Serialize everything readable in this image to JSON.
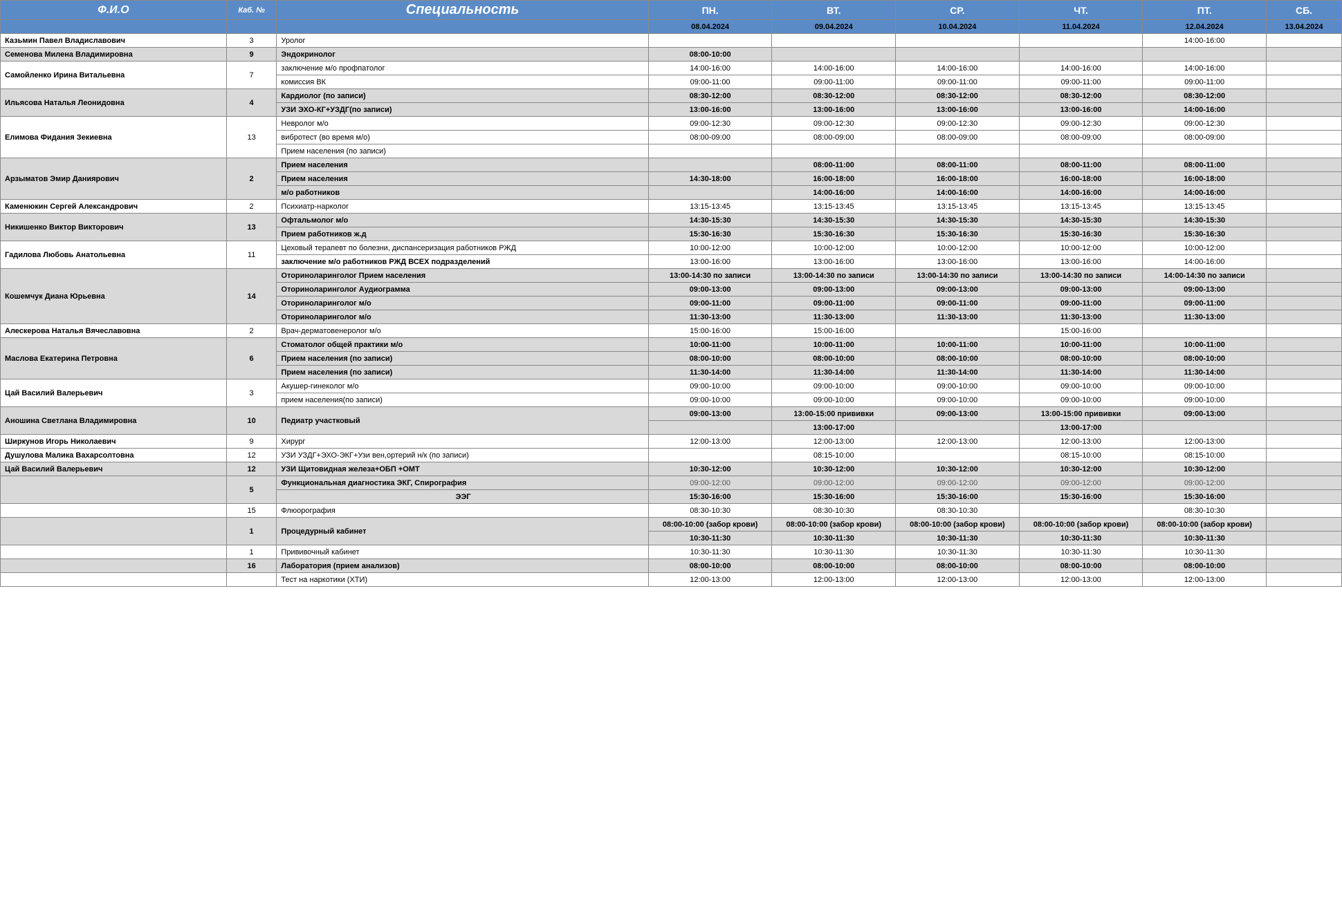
{
  "hdr": {
    "fio": "Ф.И.О",
    "kab": "Каб. №",
    "spec": "Специальность",
    "d1": "ПН.",
    "d2": "ВТ.",
    "d3": "СР.",
    "d4": "ЧТ.",
    "d5": "ПТ.",
    "d6": "СБ."
  },
  "dates": {
    "d1": "08.04.2024",
    "d2": "09.04.2024",
    "d3": "10.04.2024",
    "d4": "11.04.2024",
    "d5": "12.04.2024",
    "d6": "13.04.2024"
  },
  "col_widths": {
    "fio": 225,
    "kab": 50,
    "spec": 370,
    "day": 123,
    "sat": 75
  },
  "colors": {
    "header_bg": "#5B8BC7",
    "shade_bg": "#d9d9d9",
    "border": "#888"
  },
  "rows": [
    {
      "fio": "Казьмин Павел Владиславович",
      "kab": "3",
      "spec": "Уролог",
      "t": [
        "",
        "",
        "",
        "",
        "14:00-16:00",
        ""
      ],
      "shade": false,
      "fiospan": 1,
      "kabspan": 1
    },
    {
      "fio": "Семенова Милена Владимировна",
      "kab": "9",
      "spec": "Эндокринолог",
      "t": [
        "08:00-10:00",
        "",
        "",
        "",
        "",
        ""
      ],
      "shade": true,
      "fiospan": 1,
      "kabspan": 1
    },
    {
      "fio": "Самойленко Ирина Витальевна",
      "kab": "7",
      "spec": "заключение м/о профпатолог",
      "t": [
        "14:00-16:00",
        "14:00-16:00",
        "14:00-16:00",
        "14:00-16:00",
        "14:00-16:00",
        ""
      ],
      "shade": false,
      "fiospan": 2,
      "kabspan": 2
    },
    {
      "spec": "комиссия ВК",
      "t": [
        "09:00-11:00",
        "09:00-11:00",
        "09:00-11:00",
        "09:00-11:00",
        "09:00-11:00",
        ""
      ],
      "shade": false
    },
    {
      "fio": "Ильясова Наталья Леонидовна",
      "kab": "4",
      "spec": "Кардиолог (по записи)",
      "t": [
        "08:30-12:00",
        "08:30-12:00",
        "08:30-12:00",
        "08:30-12:00",
        "08:30-12:00",
        ""
      ],
      "shade": true,
      "fiospan": 2,
      "kabspan": 2
    },
    {
      "spec": "УЗИ  ЭХО-КГ+УЗДГ(по записи)",
      "t": [
        "13:00-16:00",
        "13:00-16:00",
        "13:00-16:00",
        "13:00-16:00",
        "14:00-16:00",
        ""
      ],
      "shade": true
    },
    {
      "fio": "Елимова Фидания Зекиевна",
      "kab": "13",
      "spec": "Невролог       м/о",
      "t": [
        "09:00-12:30",
        "09:00-12:30",
        "09:00-12:30",
        "09:00-12:30",
        "09:00-12:30",
        ""
      ],
      "shade": false,
      "fiospan": 3,
      "kabspan": 3
    },
    {
      "spec": "вибротест (во время м/о)",
      "t": [
        "08:00-09:00",
        "08:00-09:00",
        "08:00-09:00",
        "08:00-09:00",
        "08:00-09:00",
        ""
      ],
      "shade": false
    },
    {
      "spec": "Прием населения (по записи)",
      "t": [
        "",
        "",
        "",
        "",
        "",
        ""
      ],
      "shade": false
    },
    {
      "fio": "Арзыматов Эмир Даниярович",
      "kab": "2",
      "spec": "Прием населения",
      "t": [
        "",
        "08:00-11:00",
        "08:00-11:00",
        "08:00-11:00",
        "08:00-11:00",
        ""
      ],
      "shade": true,
      "fiospan": 3,
      "kabspan": 3
    },
    {
      "spec": "Прием населения",
      "t": [
        "14:30-18:00",
        "16:00-18:00",
        "16:00-18:00",
        "16:00-18:00",
        "16:00-18:00",
        ""
      ],
      "shade": true
    },
    {
      "spec": "м/о работников",
      "t": [
        "",
        "14:00-16:00",
        "14:00-16:00",
        "14:00-16:00",
        "14:00-16:00",
        ""
      ],
      "shade": true
    },
    {
      "fio": "Каменюкин Сергей Александрович",
      "kab": "2",
      "spec": "Психиатр-нарколог",
      "t": [
        "13:15-13:45",
        "13:15-13:45",
        "13:15-13:45",
        "13:15-13:45",
        "13:15-13:45",
        ""
      ],
      "shade": false,
      "fiospan": 1,
      "kabspan": 1
    },
    {
      "fio": "Никишенко Виктор Викторович",
      "kab": "13",
      "spec": "Офтальмолог  м/о",
      "t": [
        "14:30-15:30",
        "14:30-15:30",
        "14:30-15:30",
        "14:30-15:30",
        "14:30-15:30",
        ""
      ],
      "shade": true,
      "fiospan": 2,
      "kabspan": 2
    },
    {
      "spec": "Прием работников ж.д",
      "t": [
        "15:30-16:30",
        "15:30-16:30",
        "15:30-16:30",
        "15:30-16:30",
        "15:30-16:30",
        ""
      ],
      "shade": true
    },
    {
      "fio": "Гадилова Любовь Анатольевна",
      "kab": "11",
      "spec": "Цеховый терапевт по болезни, диспансеризация работников РЖД",
      "t": [
        "10:00-12:00",
        "10:00-12:00",
        "10:00-12:00",
        "10:00-12:00",
        "10:00-12:00",
        ""
      ],
      "shade": false,
      "fiospan": 2,
      "kabspan": 2
    },
    {
      "spec": "заключение м/о работников РЖД ВСЕХ подразделений",
      "t": [
        "13:00-16:00",
        "13:00-16:00",
        "13:00-16:00",
        "13:00-16:00",
        "14:00-16:00",
        ""
      ],
      "shade": false,
      "specbold": true
    },
    {
      "fio": "Кошемчук Диана Юрьевна",
      "kab": "14",
      "spec": "Оториноларинголог     Прием населения",
      "t": [
        "13:00-14:30 по записи",
        "13:00-14:30 по записи",
        "13:00-14:30 по записи",
        "13:00-14:30 по записи",
        "14:00-14:30 по записи",
        ""
      ],
      "shade": true,
      "fiospan": 4,
      "kabspan": 4
    },
    {
      "spec": "Оториноларинголог      Аудиограмма",
      "t": [
        "09:00-13:00",
        "09:00-13:00",
        "09:00-13:00",
        "09:00-13:00",
        "09:00-13:00",
        ""
      ],
      "shade": true
    },
    {
      "spec": "Оториноларинголог      м/о",
      "t": [
        "09:00-11:00",
        "09:00-11:00",
        "09:00-11:00",
        "09:00-11:00",
        "09:00-11:00",
        ""
      ],
      "shade": true
    },
    {
      "spec": "Оториноларинголог      м/о",
      "t": [
        "11:30-13:00",
        "11:30-13:00",
        "11:30-13:00",
        "11:30-13:00",
        "11:30-13:00",
        ""
      ],
      "shade": true
    },
    {
      "fio": "Алескерова Наталья Вячеславовна",
      "kab": "2",
      "spec": "Врач-дерматовенеролог       м/о",
      "t": [
        "15:00-16:00",
        "15:00-16:00",
        "",
        "15:00-16:00",
        "",
        ""
      ],
      "shade": false,
      "fiospan": 1,
      "kabspan": 1
    },
    {
      "fio": "Маслова Екатерина Петровна",
      "kab": "6",
      "spec": "Стоматолог общей практики      м/о",
      "t": [
        "10:00-11:00",
        "10:00-11:00",
        "10:00-11:00",
        "10:00-11:00",
        "10:00-11:00",
        ""
      ],
      "shade": true,
      "fiospan": 3,
      "kabspan": 3
    },
    {
      "spec": "Прием населения (по записи)",
      "t": [
        "08:00-10:00",
        "08:00-10:00",
        "08:00-10:00",
        "08:00-10:00",
        "08:00-10:00",
        ""
      ],
      "shade": true
    },
    {
      "spec": "Прием населения (по записи)",
      "t": [
        "11:30-14:00",
        "11:30-14:00",
        "11:30-14:00",
        "11:30-14:00",
        "11:30-14:00",
        ""
      ],
      "shade": true
    },
    {
      "fio": "Цай Василий Валерьевич",
      "kab": "3",
      "spec": "Акушер-гинеколог          м/о",
      "t": [
        "09:00-10:00",
        "09:00-10:00",
        "09:00-10:00",
        "09:00-10:00",
        "09:00-10:00",
        ""
      ],
      "shade": false,
      "fiospan": 2,
      "kabspan": 2
    },
    {
      "spec": "прием населения(по записи)",
      "t": [
        "09:00-10:00",
        "09:00-10:00",
        "09:00-10:00",
        "09:00-10:00",
        "09:00-10:00",
        ""
      ],
      "shade": false
    },
    {
      "fio": "Аношина Светлана Владимировна",
      "kab": "10",
      "spec": "Педиатр участковый",
      "t": [
        "09:00-13:00",
        "13:00-15:00 прививки",
        "09:00-13:00",
        "13:00-15:00 прививки",
        "09:00-13:00",
        ""
      ],
      "shade": true,
      "fiospan": 2,
      "kabspan": 2,
      "specspan": 2
    },
    {
      "t": [
        "",
        "13:00-17:00",
        "",
        "13:00-17:00",
        "",
        ""
      ],
      "shade": true
    },
    {
      "fio": "Ширкунов Игорь Николаевич",
      "kab": "9",
      "spec": "Хирург",
      "t": [
        "12:00-13:00",
        "12:00-13:00",
        "12:00-13:00",
        "12:00-13:00",
        "12:00-13:00",
        ""
      ],
      "shade": false,
      "fiospan": 1,
      "kabspan": 1
    },
    {
      "fio": "Душулова Малика Вахарсолтовна",
      "kab": "12",
      "spec": "УЗИ УЗДГ+ЭХО-ЭКГ+Узи вен,ортерий н/к (по записи)",
      "t": [
        "",
        "08:15-10:00",
        "",
        "08:15-10:00",
        "08:15-10:00",
        ""
      ],
      "shade": false,
      "fiospan": 1,
      "kabspan": 1
    },
    {
      "fio": "Цай Василий Валерьевич",
      "kab": "12",
      "spec": "УЗИ Щитовидная железа+ОБП +ОМТ",
      "t": [
        "10:30-12:00",
        "10:30-12:00",
        "10:30-12:00",
        "10:30-12:00",
        "10:30-12:00",
        ""
      ],
      "shade": true,
      "fiospan": 1,
      "kabspan": 1
    },
    {
      "fio": "",
      "kab": "5",
      "spec": "Функциональная диагностика ЭКГ, Спирография",
      "t": [
        "09:00-12:00",
        "09:00-12:00",
        "09:00-12:00",
        "09:00-12:00",
        "09:00-12:00",
        ""
      ],
      "shade": true,
      "fiospan": 2,
      "kabspan": 2,
      "lite": true
    },
    {
      "spec": "ЭЭГ",
      "t": [
        "15:30-16:00",
        "15:30-16:00",
        "15:30-16:00",
        "15:30-16:00",
        "15:30-16:00",
        ""
      ],
      "shade": true,
      "speccenter": true
    },
    {
      "fio": "",
      "kab": "15",
      "spec": "Флюорография",
      "t": [
        "08:30-10:30",
        "08:30-10:30",
        "08:30-10:30",
        "",
        "08:30-10:30",
        ""
      ],
      "shade": false,
      "fiospan": 1,
      "kabspan": 1
    },
    {
      "fio": "",
      "kab": "1",
      "spec": "Процедурный кабинет",
      "t": [
        "08:00-10:00 (забор крови)",
        "08:00-10:00 (забор крови)",
        "08:00-10:00 (забор крови)",
        "08:00-10:00 (забор крови)",
        "08:00-10:00 (забор крови)",
        ""
      ],
      "shade": true,
      "fiospan": 2,
      "kabspan": 2,
      "specspan": 2
    },
    {
      "t": [
        "10:30-11:30",
        "10:30-11:30",
        "10:30-11:30",
        "10:30-11:30",
        "10:30-11:30",
        ""
      ],
      "shade": true
    },
    {
      "fio": "",
      "kab": "1",
      "spec": "Прививочный кабинет",
      "t": [
        "10:30-11:30",
        "10:30-11:30",
        "10:30-11:30",
        "10:30-11:30",
        "10:30-11:30",
        ""
      ],
      "shade": false,
      "fiospan": 1,
      "kabspan": 1
    },
    {
      "fio": "",
      "kab": "16",
      "spec": "Лаборатория (прием анализов)",
      "t": [
        "08:00-10:00",
        "08:00-10:00",
        "08:00-10:00",
        "08:00-10:00",
        "08:00-10:00",
        ""
      ],
      "shade": true,
      "fiospan": 1,
      "kabspan": 1
    },
    {
      "fio": "",
      "kab": "",
      "spec": "Тест на наркотики (ХТИ)",
      "t": [
        "12:00-13:00",
        "12:00-13:00",
        "12:00-13:00",
        "12:00-13:00",
        "12:00-13:00",
        ""
      ],
      "shade": false,
      "fiospan": 1,
      "kabspan": 1
    }
  ]
}
